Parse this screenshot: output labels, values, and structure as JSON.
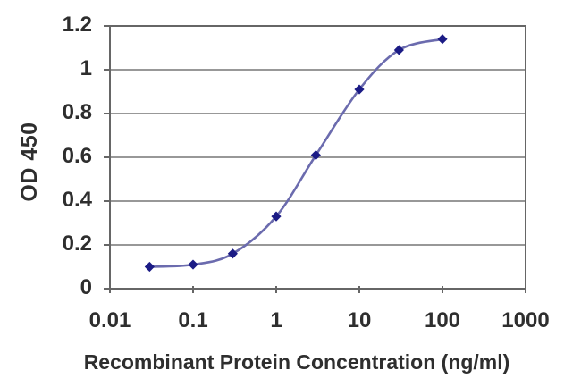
{
  "chart_data": {
    "type": "line",
    "xlabel": "Recombinant Protein Concentration (ng/ml)",
    "ylabel": "OD 450",
    "x": [
      0.03,
      0.1,
      0.3,
      1,
      3,
      10,
      30,
      100
    ],
    "y": [
      0.1,
      0.11,
      0.16,
      0.33,
      0.61,
      0.91,
      1.09,
      1.14
    ],
    "x_scale": "log",
    "xlim": [
      0.01,
      1000
    ],
    "ylim": [
      0,
      1.2
    ],
    "x_tick_labels": [
      "0.01",
      "0.1",
      "1",
      "10",
      "100",
      "1000"
    ],
    "y_tick_labels": [
      "0",
      "0.2",
      "0.4",
      "0.6",
      "0.8",
      "1",
      "1.2"
    ],
    "grid": "horizontal",
    "legend": "none",
    "marker": "diamond",
    "colors": {
      "line": "#6b6bae",
      "marker": "#1b1b85",
      "gridline": "#8a8a8a",
      "axis": "#666666",
      "text": "#2e2e2e",
      "background": "#ffffff"
    }
  }
}
